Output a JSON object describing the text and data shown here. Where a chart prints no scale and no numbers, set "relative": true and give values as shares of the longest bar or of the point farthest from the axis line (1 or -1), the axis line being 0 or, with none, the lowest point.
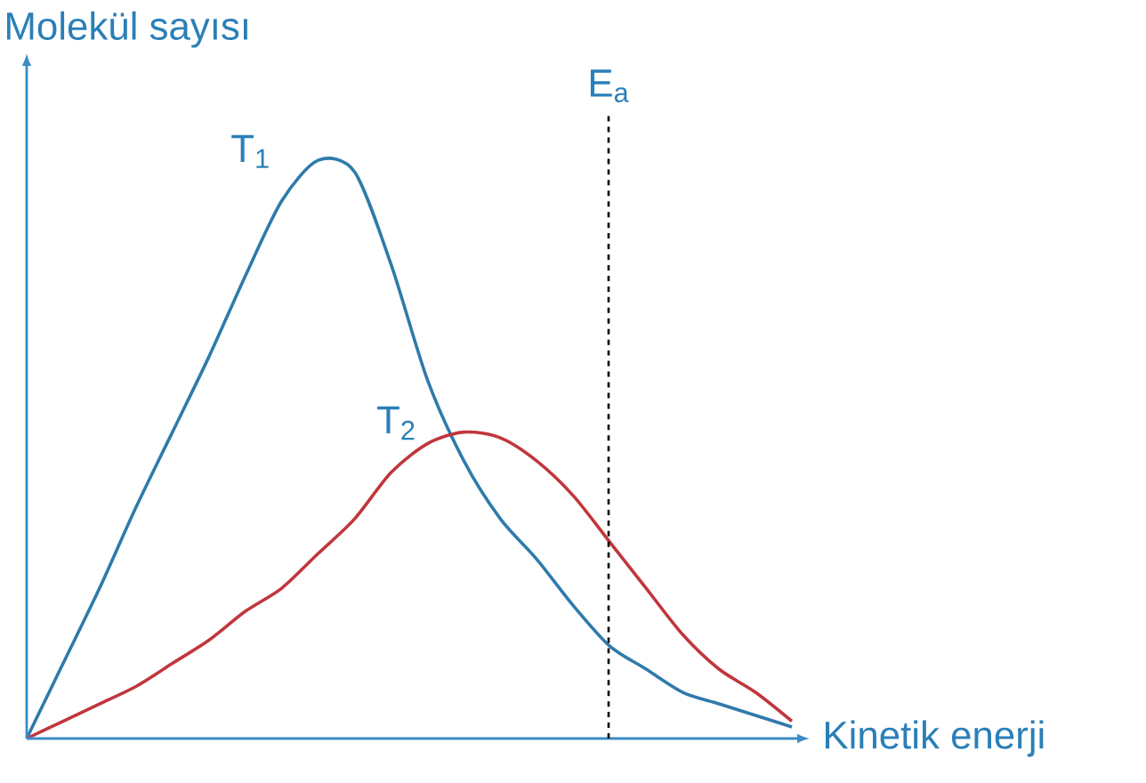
{
  "chart_data": {
    "type": "line",
    "relative": true,
    "ylabel": "Molekül sayısı",
    "xlabel": "Kinetik enerji",
    "categories": [
      null,
      null,
      null,
      null,
      null,
      null,
      null,
      null,
      null,
      null,
      null,
      null,
      null,
      null,
      null,
      null,
      null,
      null,
      null,
      null,
      null,
      null
    ],
    "series": [
      {
        "name": "T$_{1}$",
        "color": "#2f7aab",
        "values": [
          0,
          0.13,
          0.26,
          0.4,
          0.53,
          0.66,
          0.8,
          0.93,
          1.0,
          0.98,
          0.82,
          0.62,
          0.48,
          0.38,
          0.31,
          0.23,
          0.16,
          0.12,
          0.08,
          0.06,
          0.04,
          0.02
        ]
      },
      {
        "name": "T$_{2}$",
        "color": "#c0363c",
        "values": [
          0,
          0.03,
          0.06,
          0.09,
          0.13,
          0.17,
          0.22,
          0.26,
          0.32,
          0.38,
          0.46,
          0.51,
          0.53,
          0.52,
          0.48,
          0.42,
          0.34,
          0.26,
          0.18,
          0.12,
          0.08,
          0.03
        ]
      }
    ],
    "annotations": [
      "E$_{a}$"
    ]
  }
}
